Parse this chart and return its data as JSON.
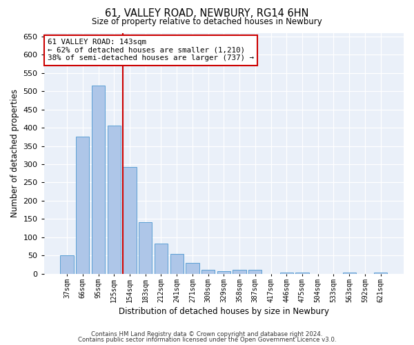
{
  "title": "61, VALLEY ROAD, NEWBURY, RG14 6HN",
  "subtitle": "Size of property relative to detached houses in Newbury",
  "xlabel": "Distribution of detached houses by size in Newbury",
  "ylabel": "Number of detached properties",
  "categories": [
    "37sqm",
    "66sqm",
    "95sqm",
    "125sqm",
    "154sqm",
    "183sqm",
    "212sqm",
    "241sqm",
    "271sqm",
    "300sqm",
    "329sqm",
    "358sqm",
    "387sqm",
    "417sqm",
    "446sqm",
    "475sqm",
    "504sqm",
    "533sqm",
    "563sqm",
    "592sqm",
    "621sqm"
  ],
  "values": [
    50,
    375,
    515,
    405,
    293,
    142,
    82,
    55,
    30,
    10,
    8,
    10,
    10,
    0,
    4,
    4,
    0,
    0,
    4,
    0,
    3
  ],
  "bar_color": "#aec6e8",
  "bar_edge_color": "#5a9fd4",
  "property_line_index": 4,
  "property_line_color": "#cc0000",
  "annotation_text": "61 VALLEY ROAD: 143sqm\n← 62% of detached houses are smaller (1,210)\n38% of semi-detached houses are larger (737) →",
  "annotation_box_color": "#ffffff",
  "annotation_box_edge": "#cc0000",
  "ylim": [
    0,
    660
  ],
  "yticks": [
    0,
    50,
    100,
    150,
    200,
    250,
    300,
    350,
    400,
    450,
    500,
    550,
    600,
    650
  ],
  "bg_color": "#eaf0f9",
  "footer_line1": "Contains HM Land Registry data © Crown copyright and database right 2024.",
  "footer_line2": "Contains public sector information licensed under the Open Government Licence v3.0."
}
